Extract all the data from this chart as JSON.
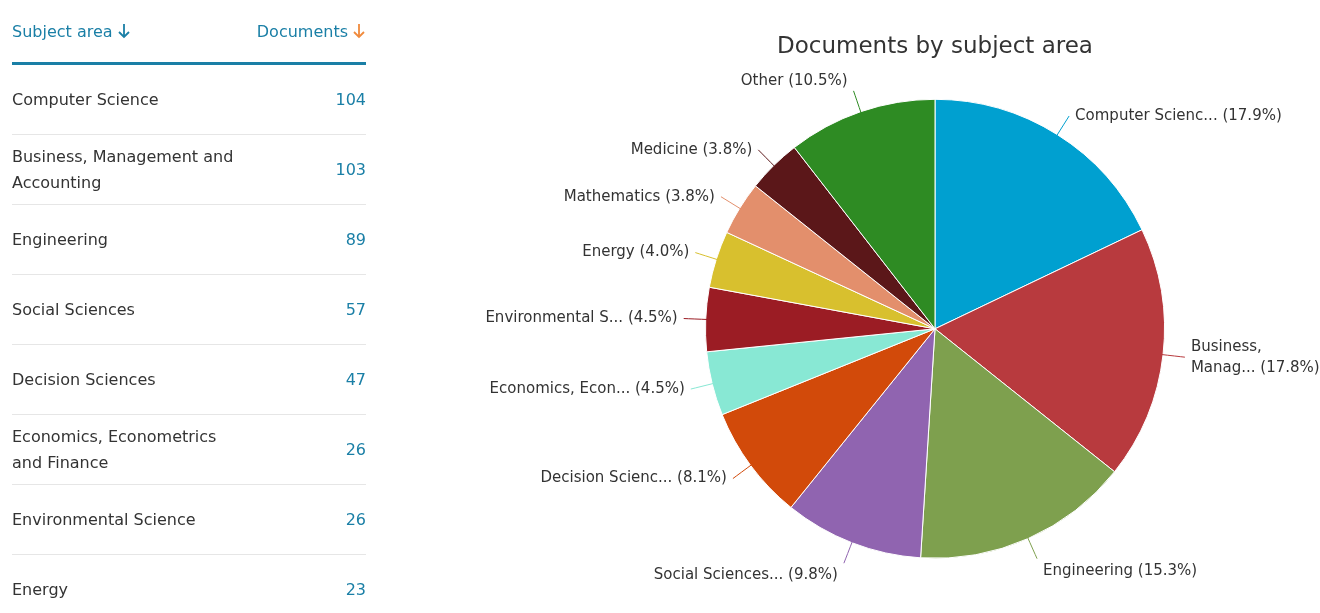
{
  "chart_data": [
    {
      "type": "other",
      "annotations": [
        "Subject area",
        "Documents"
      ],
      "categories": [
        "Computer Science",
        "Business, Management and Accounting",
        "Engineering",
        "Social Sciences",
        "Decision Sciences",
        "Economics, Econometrics and Finance",
        "Environmental Science",
        "Energy"
      ],
      "values": [
        104,
        103,
        89,
        57,
        47,
        26,
        26,
        23
      ],
      "data_labels": true
    },
    {
      "type": "pie",
      "title": "Documents by subject area",
      "categories": [
        "Computer Scienc...",
        "Business, Manag...",
        "Engineering",
        "Social Sciences...",
        "Decision Scienc...",
        "Economics, Econ...",
        "Environmental S...",
        "Energy",
        "Mathematics",
        "Medicine",
        "Other"
      ],
      "values": [
        17.9,
        17.8,
        15.3,
        9.8,
        8.1,
        4.5,
        4.5,
        4.0,
        3.8,
        3.8,
        10.5
      ],
      "value_labels": [
        "(17.9%)",
        "(17.8%)",
        "(15.3%)",
        "(9.8%)",
        "(8.1%)",
        "(4.5%)",
        "(4.5%)",
        "(4.0%)",
        "(3.8%)",
        "(3.8%)",
        "(10.5%)"
      ],
      "colors": [
        "#00a0d0",
        "#b83a3e",
        "#7ea04e",
        "#9064b0",
        "#d24a0a",
        "#88e8d4",
        "#9b1c24",
        "#d8c02e",
        "#e38f6c",
        "#5b1719",
        "#2e8b23"
      ]
    }
  ]
}
